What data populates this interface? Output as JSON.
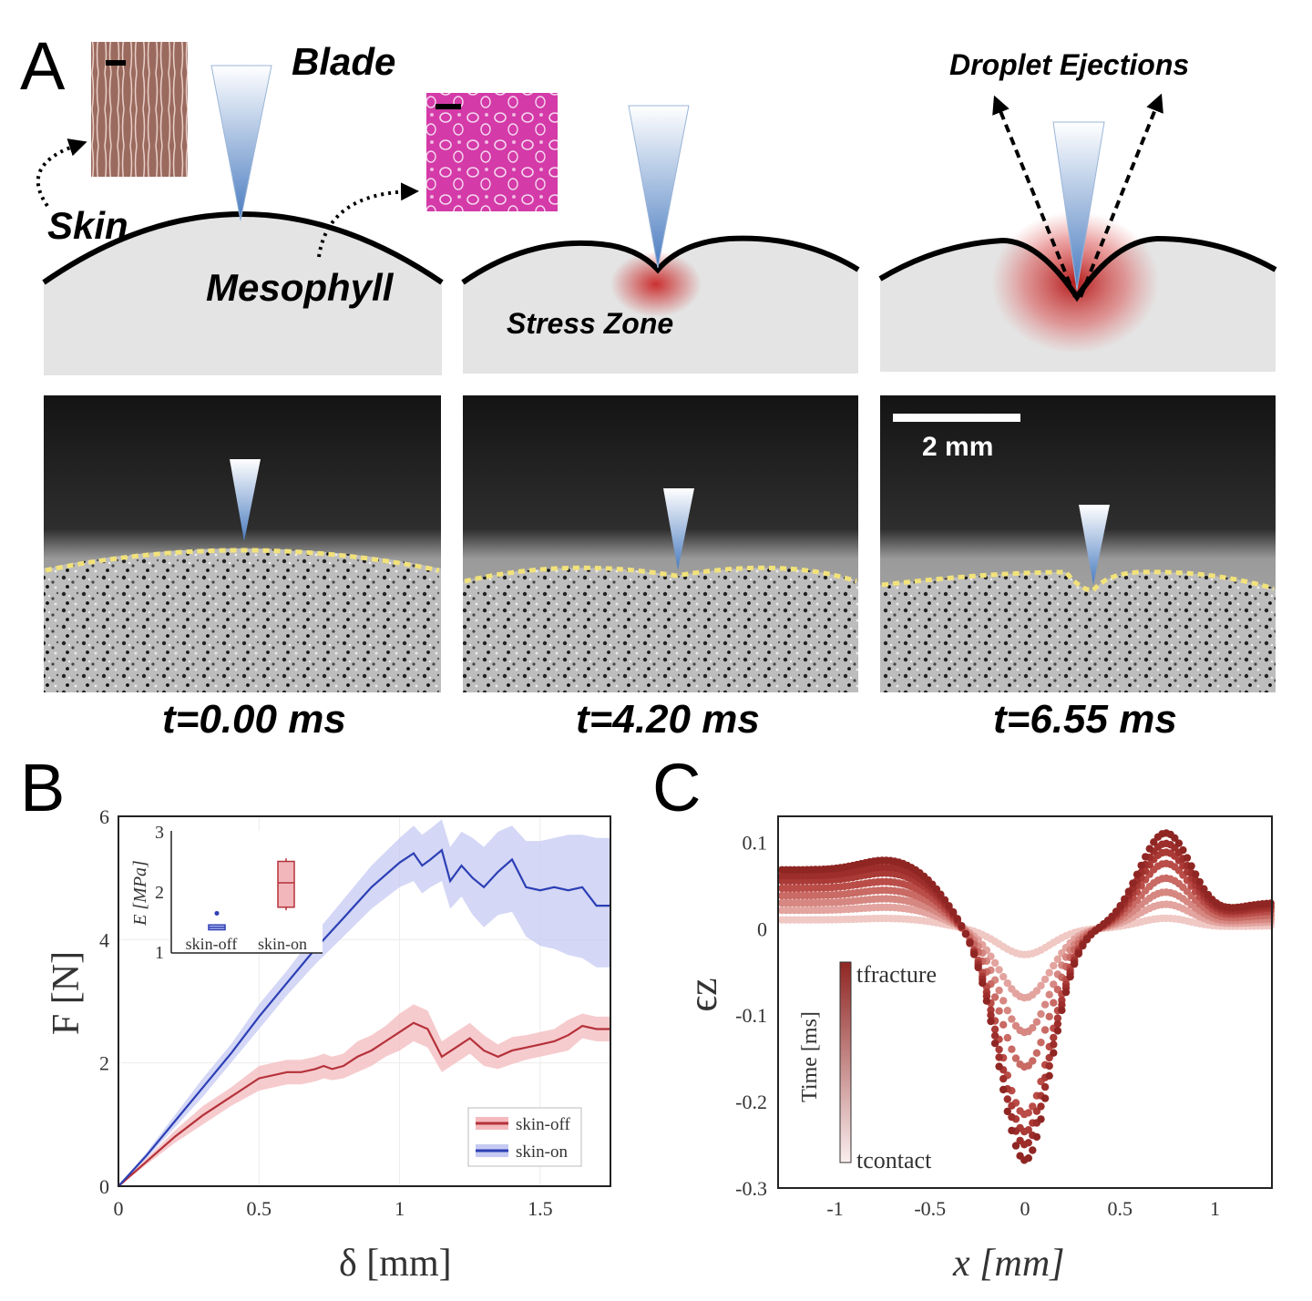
{
  "panelA": {
    "letter": "A",
    "labels": {
      "blade": "Blade",
      "skin": "Skin",
      "mesophyll": "Mesophyll",
      "stress_zone": "Stress Zone",
      "droplet_ejections": "Droplet Ejections"
    },
    "scale_bar": "2 mm",
    "times": [
      "t=0.00 ms",
      "t=4.20 ms",
      "t=6.55 ms"
    ],
    "colors": {
      "blade": "#4d7fc0",
      "stress": "#c81c1c",
      "interface": "#f2e27a",
      "tissue": "#e4e4e4"
    }
  },
  "panelB": {
    "letter": "B",
    "xlabel": "δ [mm]",
    "ylabel": "F [N]",
    "legend": [
      "skin-off",
      "skin-on"
    ],
    "inset": {
      "ylabel": "E [MPa]",
      "categories": [
        "skin-off",
        "skin-on"
      ],
      "yticks": [
        "1",
        "2",
        "3"
      ]
    },
    "xticks": [
      "0",
      "0.5",
      "1",
      "1.5"
    ],
    "yticks": [
      "0",
      "2",
      "4",
      "6"
    ]
  },
  "panelC": {
    "letter": "C",
    "xlabel": "x [mm]",
    "ylabel": "ϵz",
    "colorbar_label": "Time [ms]",
    "colorbar_top": "tfracture",
    "colorbar_bottom": "tcontact",
    "xticks": [
      "-1",
      "-0.5",
      "0",
      "0.5",
      "1"
    ],
    "yticks": [
      "0.1",
      "0",
      "-0.1",
      "-0.2",
      "-0.3"
    ]
  },
  "chart_data": [
    {
      "type": "line",
      "panel": "B",
      "xlabel": "δ [mm]",
      "ylabel": "F [N]",
      "xlim": [
        0,
        1.75
      ],
      "ylim": [
        0,
        6
      ],
      "grid": true,
      "legend_position": "bottom-right",
      "series": [
        {
          "name": "skin-off",
          "color": "#b5323a",
          "x": [
            0,
            0.1,
            0.2,
            0.3,
            0.4,
            0.5,
            0.6,
            0.65,
            0.7,
            0.73,
            0.76,
            0.8,
            0.85,
            0.9,
            0.95,
            1.0,
            1.05,
            1.1,
            1.15,
            1.2,
            1.25,
            1.3,
            1.35,
            1.4,
            1.45,
            1.5,
            1.55,
            1.6,
            1.65,
            1.7,
            1.75
          ],
          "y": [
            0,
            0.4,
            0.8,
            1.15,
            1.45,
            1.75,
            1.85,
            1.85,
            1.9,
            1.95,
            1.9,
            1.95,
            2.1,
            2.2,
            2.35,
            2.5,
            2.65,
            2.55,
            2.1,
            2.25,
            2.4,
            2.2,
            2.1,
            2.2,
            2.25,
            2.3,
            2.35,
            2.45,
            2.6,
            2.55,
            2.55
          ],
          "band_low": [
            0,
            0.35,
            0.7,
            1.0,
            1.3,
            1.55,
            1.65,
            1.65,
            1.7,
            1.75,
            1.72,
            1.75,
            1.85,
            1.95,
            2.1,
            2.2,
            2.35,
            2.25,
            1.85,
            2.0,
            2.15,
            1.95,
            1.9,
            1.98,
            2.05,
            2.1,
            2.15,
            2.2,
            2.4,
            2.35,
            2.35
          ],
          "band_high": [
            0,
            0.45,
            0.9,
            1.3,
            1.6,
            1.95,
            2.05,
            2.05,
            2.1,
            2.15,
            2.1,
            2.15,
            2.35,
            2.45,
            2.6,
            2.8,
            2.95,
            2.85,
            2.35,
            2.5,
            2.65,
            2.45,
            2.3,
            2.42,
            2.45,
            2.5,
            2.55,
            2.7,
            2.8,
            2.75,
            2.75
          ]
        },
        {
          "name": "skin-on",
          "color": "#2c3fb5",
          "x": [
            0,
            0.1,
            0.2,
            0.3,
            0.4,
            0.5,
            0.6,
            0.7,
            0.8,
            0.9,
            1.0,
            1.05,
            1.08,
            1.11,
            1.15,
            1.18,
            1.22,
            1.26,
            1.3,
            1.35,
            1.4,
            1.45,
            1.5,
            1.55,
            1.6,
            1.65,
            1.7,
            1.75
          ],
          "y": [
            0,
            0.5,
            1.05,
            1.6,
            2.15,
            2.75,
            3.3,
            3.85,
            4.35,
            4.85,
            5.25,
            5.4,
            5.2,
            5.3,
            5.45,
            4.95,
            5.2,
            5.0,
            4.85,
            5.1,
            5.3,
            4.85,
            4.8,
            4.85,
            4.8,
            4.85,
            4.55,
            4.55
          ],
          "band_low": [
            0,
            0.45,
            0.95,
            1.45,
            2.0,
            2.55,
            3.1,
            3.6,
            4.05,
            4.5,
            4.85,
            4.95,
            4.75,
            4.85,
            4.95,
            4.5,
            4.7,
            4.4,
            4.2,
            4.4,
            4.45,
            4.05,
            3.9,
            3.85,
            3.75,
            3.7,
            3.55,
            3.55
          ],
          "band_high": [
            0,
            0.55,
            1.15,
            1.75,
            2.3,
            2.95,
            3.5,
            4.1,
            4.65,
            5.2,
            5.65,
            5.85,
            5.7,
            5.8,
            5.95,
            5.5,
            5.75,
            5.65,
            5.5,
            5.75,
            5.85,
            5.6,
            5.6,
            5.65,
            5.7,
            5.7,
            5.65,
            5.65
          ]
        }
      ],
      "inset": {
        "type": "box",
        "ylabel": "E [MPa]",
        "ylim": [
          1,
          3
        ],
        "boxes": [
          {
            "category": "skin-off",
            "color": "#2c3fb5",
            "min": 1.38,
            "q1": 1.38,
            "median": 1.42,
            "q3": 1.46,
            "max": 1.46,
            "outlier": 1.65
          },
          {
            "category": "skin-on",
            "color": "#b5323a",
            "min": 1.7,
            "q1": 1.75,
            "median": 2.15,
            "q3": 2.5,
            "max": 2.55
          }
        ]
      }
    },
    {
      "type": "scatter",
      "panel": "C",
      "xlabel": "x [mm]",
      "ylabel": "ϵz",
      "xlim": [
        -1.3,
        1.3
      ],
      "ylim": [
        -0.3,
        0.13
      ],
      "colorbar": {
        "label": "Time [ms]",
        "top": "tfracture",
        "bottom": "tcontact"
      },
      "series": [
        {
          "color": "#f0c8c4",
          "amp_min": -0.03,
          "amp_left": 0.012,
          "amp_right": 0.012
        },
        {
          "color": "#e3a39e",
          "amp_min": -0.08,
          "amp_left": 0.025,
          "amp_right": 0.028
        },
        {
          "color": "#d68781",
          "amp_min": -0.12,
          "amp_left": 0.035,
          "amp_right": 0.042
        },
        {
          "color": "#c96a64",
          "amp_min": -0.16,
          "amp_left": 0.045,
          "amp_right": 0.058
        },
        {
          "color": "#ba4d48",
          "amp_min": -0.215,
          "amp_left": 0.055,
          "amp_right": 0.075
        },
        {
          "color": "#aa3a36",
          "amp_min": -0.235,
          "amp_left": 0.065,
          "amp_right": 0.088
        },
        {
          "color": "#9d2e2b",
          "amp_min": -0.25,
          "amp_left": 0.072,
          "amp_right": 0.098
        },
        {
          "color": "#8f2623",
          "amp_min": -0.268,
          "amp_left": 0.08,
          "amp_right": 0.11
        }
      ]
    }
  ]
}
